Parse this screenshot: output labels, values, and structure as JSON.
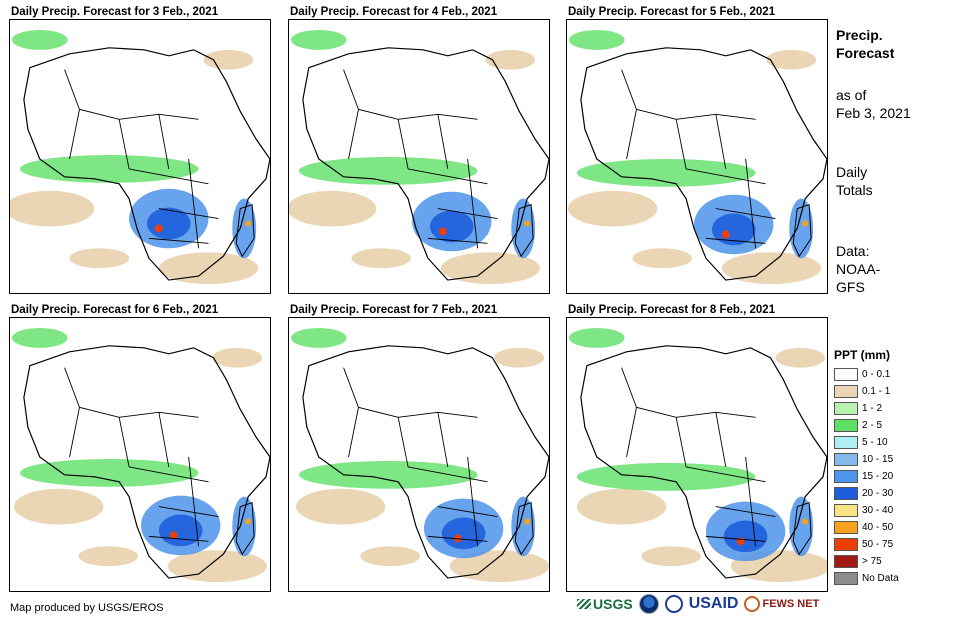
{
  "panels": [
    {
      "title": "Daily Precip. Forecast for 3 Feb., 2021"
    },
    {
      "title": "Daily Precip. Forecast for 4 Feb., 2021"
    },
    {
      "title": "Daily Precip. Forecast for 5 Feb., 2021"
    },
    {
      "title": "Daily Precip. Forecast for 6 Feb., 2021"
    },
    {
      "title": "Daily Precip. Forecast for 7 Feb., 2021"
    },
    {
      "title": "Daily Precip. Forecast for 8 Feb., 2021"
    }
  ],
  "sidebar": {
    "title_line1": "Precip.",
    "title_line2": "Forecast",
    "asof_line1": "as of",
    "asof_line2": "Feb 3, 2021",
    "totals_line1": "Daily",
    "totals_line2": "Totals",
    "data_line1": "Data:",
    "data_line2": "NOAA-",
    "data_line3": "GFS"
  },
  "legend": {
    "title": "PPT (mm)",
    "items": [
      {
        "label": "0 - 0.1",
        "color": "#ffffff"
      },
      {
        "label": "0.1 - 1",
        "color": "#ead6b4"
      },
      {
        "label": "1 - 2",
        "color": "#b7f2b0"
      },
      {
        "label": "2 - 5",
        "color": "#5ee065"
      },
      {
        "label": "5 - 10",
        "color": "#aeeef4"
      },
      {
        "label": "10 - 15",
        "color": "#84b9ec"
      },
      {
        "label": "15 - 20",
        "color": "#4d94ea"
      },
      {
        "label": "20 - 30",
        "color": "#1e5edc"
      },
      {
        "label": "30 - 40",
        "color": "#f8e482"
      },
      {
        "label": "40 - 50",
        "color": "#f7a21d"
      },
      {
        "label": "50 - 75",
        "color": "#ee3f0a"
      },
      {
        "label": "> 75",
        "color": "#a41a14"
      },
      {
        "label": "No Data",
        "color": "#8c8c8c"
      }
    ]
  },
  "footer": {
    "credit": "Map produced by USGS/EROS",
    "logo_usgs": "USGS",
    "logo_usaid": "USAID",
    "logo_fews": "FEWS NET"
  }
}
